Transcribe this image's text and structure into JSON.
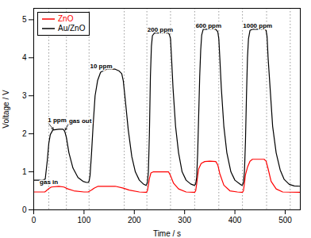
{
  "chart_data": {
    "type": "line",
    "xlabel": "Time / s",
    "ylabel": "Voltage / V",
    "xlim": [
      0,
      530
    ],
    "ylim": [
      0,
      5.3
    ],
    "xticks": [
      0,
      100,
      200,
      300,
      400,
      500
    ],
    "yticks": [
      0,
      1,
      2,
      3,
      4,
      5
    ],
    "legend": "upper left",
    "vlines": {
      "x": [
        30,
        65,
        110,
        180,
        225,
        272,
        320,
        368,
        415,
        463,
        510
      ],
      "color": "gray",
      "line_style": "dotted"
    },
    "annotations": [
      {
        "text": "1 ppm",
        "x": 28,
        "y": 2.3,
        "arrow_x": 40,
        "arrow_y": 2.1
      },
      {
        "text": "gas out",
        "x": 70,
        "y": 2.28,
        "arrow_x": 62,
        "arrow_y": 2.08
      },
      {
        "text": "gas in",
        "x": 12,
        "y": 0.68,
        "arrow_x": 23,
        "arrow_y": 0.82
      },
      {
        "text": "10 ppm",
        "x": 112,
        "y": 3.73
      },
      {
        "text": "200 ppm",
        "x": 226,
        "y": 4.68
      },
      {
        "text": "600 ppm",
        "x": 322,
        "y": 4.78
      },
      {
        "text": "1000 ppm",
        "x": 416,
        "y": 4.78
      }
    ],
    "series": [
      {
        "name": "ZnO",
        "color": "red",
        "x": [
          0,
          22,
          25,
          30,
          35,
          50,
          60,
          68,
          80,
          100,
          108,
          115,
          120,
          128,
          162,
          178,
          190,
          210,
          222,
          224,
          226,
          228,
          230,
          233,
          238,
          258,
          268,
          272,
          278,
          288,
          303,
          318,
          320,
          322,
          324,
          326,
          328,
          333,
          340,
          350,
          362,
          366,
          370,
          378,
          390,
          405,
          413,
          415,
          417,
          419,
          421,
          425,
          430,
          435,
          458,
          462,
          466,
          472,
          482,
          495,
          530
        ],
        "values": [
          0.47,
          0.47,
          0.5,
          0.56,
          0.6,
          0.62,
          0.6,
          0.55,
          0.5,
          0.47,
          0.47,
          0.52,
          0.57,
          0.62,
          0.62,
          0.57,
          0.52,
          0.47,
          0.46,
          0.46,
          0.5,
          0.65,
          0.82,
          0.97,
          1.0,
          1.0,
          1.0,
          0.9,
          0.7,
          0.55,
          0.47,
          0.46,
          0.46,
          0.5,
          0.68,
          0.9,
          1.08,
          1.22,
          1.27,
          1.28,
          1.27,
          1.18,
          0.95,
          0.65,
          0.5,
          0.47,
          0.46,
          0.46,
          0.5,
          0.7,
          0.92,
          1.12,
          1.28,
          1.33,
          1.33,
          1.28,
          1.08,
          0.75,
          0.55,
          0.47,
          0.46
        ]
      },
      {
        "name": "Au/ZnO",
        "color": "black",
        "x": [
          0,
          22,
          23,
          27,
          30,
          33,
          38,
          50,
          58,
          60,
          62,
          65,
          70,
          78,
          88,
          98,
          105,
          108,
          110,
          112,
          115,
          118,
          122,
          127,
          133,
          145,
          162,
          170,
          175,
          178,
          182,
          188,
          195,
          202,
          210,
          218,
          222,
          224,
          226,
          228,
          230,
          232,
          234,
          236,
          240,
          258,
          268,
          270,
          272,
          274,
          277,
          282,
          288,
          295,
          303,
          312,
          318,
          320,
          322,
          324,
          326,
          328,
          330,
          332,
          334,
          337,
          350,
          362,
          366,
          368,
          370,
          373,
          378,
          384,
          392,
          400,
          410,
          413,
          415,
          417,
          419,
          421,
          423,
          425,
          427,
          430,
          435,
          458,
          462,
          464,
          466,
          470,
          475,
          482,
          490,
          498,
          508,
          518,
          530
        ],
        "values": [
          0.78,
          0.78,
          0.82,
          1.3,
          1.75,
          1.98,
          2.1,
          2.12,
          2.12,
          2.1,
          2.05,
          1.9,
          1.5,
          1.1,
          0.85,
          0.75,
          0.72,
          0.72,
          0.75,
          0.9,
          1.5,
          2.2,
          3.0,
          3.4,
          3.62,
          3.7,
          3.7,
          3.65,
          3.58,
          3.4,
          2.9,
          2.1,
          1.4,
          1.0,
          0.78,
          0.68,
          0.65,
          0.65,
          0.72,
          1.0,
          2.0,
          3.5,
          4.3,
          4.58,
          4.65,
          4.65,
          4.65,
          4.6,
          4.5,
          4.0,
          3.2,
          2.2,
          1.5,
          1.0,
          0.78,
          0.68,
          0.65,
          0.65,
          0.68,
          0.85,
          1.5,
          2.5,
          3.5,
          4.2,
          4.6,
          4.75,
          4.75,
          4.75,
          4.68,
          4.5,
          4.0,
          3.2,
          2.2,
          1.5,
          1.0,
          0.78,
          0.68,
          0.65,
          0.65,
          0.72,
          1.0,
          1.8,
          3.0,
          4.0,
          4.5,
          4.72,
          4.75,
          4.75,
          4.72,
          4.55,
          4.0,
          3.2,
          2.2,
          1.5,
          1.05,
          0.8,
          0.67,
          0.63,
          0.62
        ]
      }
    ]
  }
}
